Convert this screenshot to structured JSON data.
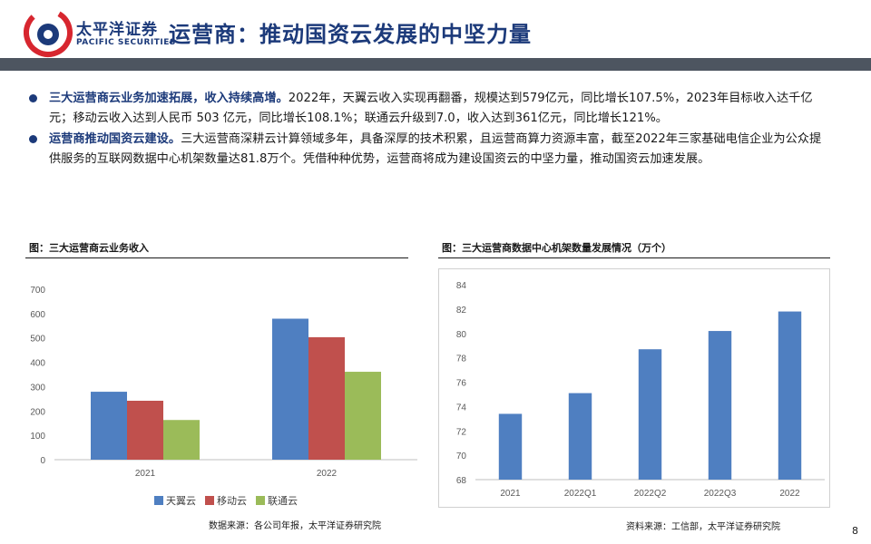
{
  "header": {
    "logo_cn": "太平洋证券",
    "logo_en": "PACIFIC SECURITIES",
    "title": "运营商：推动国资云发展的中坚力量"
  },
  "bullets": [
    {
      "lead": "三大运营商云业务加速拓展，收入持续高增。",
      "text": "2022年，天翼云收入实现再翻番，规模达到579亿元，同比增长107.5%，2023年目标收入达千亿元；移动云收入达到人民币 503 亿元，同比增长108.1%；联通云升级到7.0，收入达到361亿元，同比增长121%。"
    },
    {
      "lead": "运营商推动国资云建设。",
      "text": "三大运营商深耕云计算领域多年，具备深厚的技术积累，且运营商算力资源丰富，截至2022年三家基础电信企业为公众提供服务的互联网数据中心机架数量达81.8万个。凭借种种优势，运营商将成为建设国资云的中坚力量，推动国资云加速发展。"
    }
  ],
  "left_chart": {
    "caption": "图：三大运营商云业务收入",
    "source": "数据来源：各公司年报，太平洋证券研究院"
  },
  "right_chart": {
    "caption": "图：三大运营商数据中心机架数量发展情况（万个）",
    "source": "资料来源：工信部，太平洋证券研究院"
  },
  "page_number": "8",
  "chart_data": [
    {
      "type": "bar",
      "title": "",
      "categories": [
        "2021",
        "2022"
      ],
      "series": [
        {
          "name": "天翼云",
          "color": "#4f7fc1",
          "values": [
            279,
            579
          ]
        },
        {
          "name": "移动云",
          "color": "#c0504d",
          "values": [
            242,
            503
          ]
        },
        {
          "name": "联通云",
          "color": "#9bbb59",
          "values": [
            163,
            361
          ]
        }
      ],
      "ylim": [
        0,
        700
      ],
      "yticks": [
        0,
        100,
        200,
        300,
        400,
        500,
        600,
        700
      ],
      "grid": false,
      "legend": "bottom"
    },
    {
      "type": "bar",
      "title": "",
      "categories": [
        "2021",
        "2022Q1",
        "2022Q2",
        "2022Q3",
        "2022"
      ],
      "series": [
        {
          "color": "#4f7fc1",
          "values": [
            73.4,
            75.1,
            78.7,
            80.2,
            81.8
          ]
        }
      ],
      "ylim": [
        68,
        84
      ],
      "yticks": [
        68,
        70,
        72,
        74,
        76,
        78,
        80,
        82,
        84
      ],
      "grid": false,
      "legend": "none"
    }
  ]
}
